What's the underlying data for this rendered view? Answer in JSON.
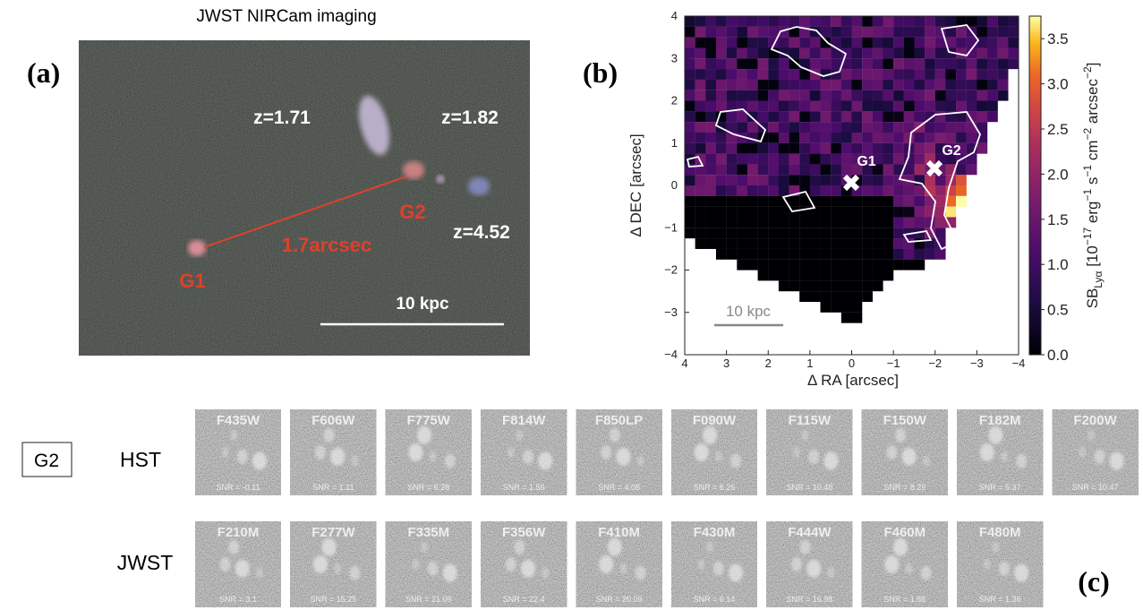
{
  "panel_a": {
    "label": "(a)",
    "title": "JWST NIRCam imaging",
    "z_labels": [
      "z=1.71",
      "z=1.82",
      "z=4.52"
    ],
    "g1": "G1",
    "g2": "G2",
    "separation": "1.7arcsec",
    "scale": "10 kpc"
  },
  "panel_b": {
    "label": "(b)",
    "xlabel": "Δ RA [arcsec]",
    "ylabel": "Δ DEC [arcsec]",
    "xticks": [
      "4",
      "3",
      "2",
      "1",
      "0",
      "−1",
      "−2",
      "−3",
      "−4"
    ],
    "yticks": [
      "4",
      "3",
      "2",
      "1",
      "0",
      "−1",
      "−2",
      "−3",
      "−4"
    ],
    "markers": [
      "G1",
      "G2"
    ],
    "scale": "10 kpc",
    "colorbar_ticks": [
      "0.0",
      "0.5",
      "1.0",
      "1.5",
      "2.0",
      "2.5",
      "3.0",
      "3.5"
    ],
    "colorbar_label": [
      "SB",
      "Lyα",
      " [10",
      "−17",
      " erg",
      "−1",
      " s",
      "−1",
      " cm",
      "−2",
      " arcsec",
      "−2",
      "]"
    ]
  },
  "panel_c": {
    "label": "(c)",
    "galaxy": "G2",
    "rows": [
      {
        "name": "HST",
        "filters": [
          {
            "filter": "F435W",
            "snr": "SNR = -0.11"
          },
          {
            "filter": "F606W",
            "snr": "SNR = 1.11"
          },
          {
            "filter": "F775W",
            "snr": "SNR = 6.28"
          },
          {
            "filter": "F814W",
            "snr": "SNR = 1.56"
          },
          {
            "filter": "F850LP",
            "snr": "SNR = 4.08"
          },
          {
            "filter": "F090W",
            "snr": "SNR = 6.26"
          },
          {
            "filter": "F115W",
            "snr": "SNR = 10.48"
          },
          {
            "filter": "F150W",
            "snr": "SNR = 8.29"
          },
          {
            "filter": "F182M",
            "snr": "SNR = 5.37"
          },
          {
            "filter": "F200W",
            "snr": "SNR = 10.47"
          }
        ]
      },
      {
        "name": "JWST",
        "filters": [
          {
            "filter": "F210M",
            "snr": "SNR = 3.1"
          },
          {
            "filter": "F277W",
            "snr": "SNR = 15.25"
          },
          {
            "filter": "F335M",
            "snr": "SNR = 21.09"
          },
          {
            "filter": "F356W",
            "snr": "SNR = 22.4"
          },
          {
            "filter": "F410M",
            "snr": "SNR = 20.09"
          },
          {
            "filter": "F430M",
            "snr": "SNR = 6.14"
          },
          {
            "filter": "F444W",
            "snr": "SNR = 16.98"
          },
          {
            "filter": "F460M",
            "snr": "SNR = 1.88"
          },
          {
            "filter": "F480M",
            "snr": "SNR = 1.36"
          }
        ]
      }
    ]
  }
}
